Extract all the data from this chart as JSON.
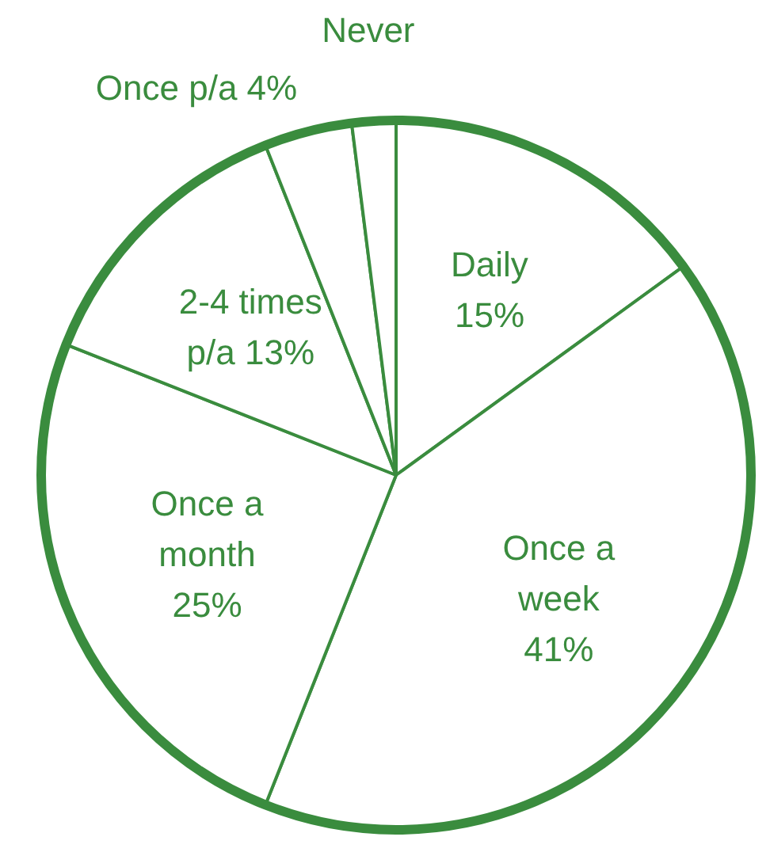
{
  "chart_data": {
    "type": "pie",
    "categories": [
      "Daily",
      "Once a week",
      "Once a month",
      "2-4 times p/a",
      "Once p/a",
      "Never"
    ],
    "values": [
      15,
      41,
      25,
      13,
      4,
      2
    ],
    "value_labels": [
      "15%",
      "41%",
      "25%",
      "13%",
      "4%",
      null
    ],
    "colors": [
      "#ffffff",
      "#ffffff",
      "#ffffff",
      "#ffffff",
      "#ffffff",
      "#ffffff"
    ],
    "legend": false
  }
}
